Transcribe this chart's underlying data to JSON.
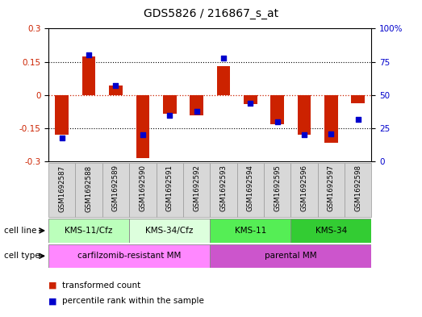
{
  "title": "GDS5826 / 216867_s_at",
  "samples": [
    "GSM1692587",
    "GSM1692588",
    "GSM1692589",
    "GSM1692590",
    "GSM1692591",
    "GSM1692592",
    "GSM1692593",
    "GSM1692594",
    "GSM1692595",
    "GSM1692596",
    "GSM1692597",
    "GSM1692598"
  ],
  "transformed_count": [
    -0.18,
    0.175,
    0.045,
    -0.285,
    -0.085,
    -0.09,
    0.13,
    -0.04,
    -0.13,
    -0.18,
    -0.215,
    -0.035
  ],
  "percentile_rank": [
    18,
    80,
    57,
    20,
    35,
    38,
    78,
    44,
    30,
    20,
    21,
    32
  ],
  "cell_line_groups": [
    {
      "label": "KMS-11/Cfz",
      "start": 0,
      "end": 3,
      "color": "#bbffbb"
    },
    {
      "label": "KMS-34/Cfz",
      "start": 3,
      "end": 6,
      "color": "#ddffdd"
    },
    {
      "label": "KMS-11",
      "start": 6,
      "end": 9,
      "color": "#55ee55"
    },
    {
      "label": "KMS-34",
      "start": 9,
      "end": 12,
      "color": "#33cc33"
    }
  ],
  "cell_type_groups": [
    {
      "label": "carfilzomib-resistant MM",
      "start": 0,
      "end": 6,
      "color": "#ff88ff"
    },
    {
      "label": "parental MM",
      "start": 6,
      "end": 12,
      "color": "#cc55cc"
    }
  ],
  "bar_color": "#cc2200",
  "dot_color": "#0000cc",
  "ylim_left": [
    -0.3,
    0.3
  ],
  "ylim_right": [
    0,
    100
  ],
  "yticks_left": [
    -0.3,
    -0.15,
    0.0,
    0.15,
    0.3
  ],
  "ytick_labels_left": [
    "-0.3",
    "-0.15",
    "0",
    "0.15",
    "0.3"
  ],
  "yticks_right": [
    0,
    25,
    50,
    75,
    100
  ],
  "ytick_labels_right": [
    "0",
    "25",
    "50",
    "75",
    "100%"
  ],
  "bar_color_hex": "#cc2200",
  "dot_color_hex": "#0000cc",
  "bg_color": "#ffffff",
  "bar_width": 0.5,
  "dot_size": 18,
  "sample_box_color": "#d8d8d8",
  "sample_box_edge": "#999999"
}
